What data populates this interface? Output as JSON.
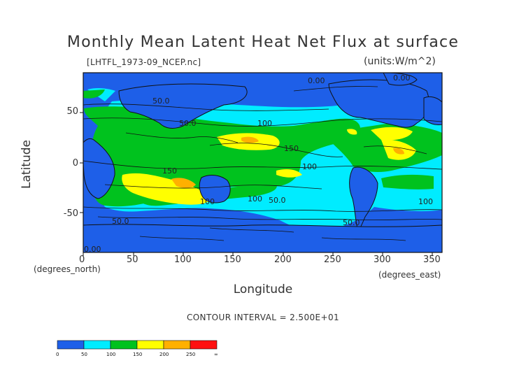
{
  "title": "Monthly Mean Latent Heat Net Flux at surface",
  "file": "[LHTFL_1973-09_NCEP.nc]",
  "units": "(units:W/m^2)",
  "axes": {
    "xlabel": "Longitude",
    "ylabel": "Latitude",
    "x_corner": "(degrees_east)",
    "y_corner": "(degrees_north)",
    "xticks": [
      "0",
      "50",
      "100",
      "150",
      "200",
      "250",
      "300",
      "350"
    ],
    "yticks": [
      "50",
      "0",
      "-50"
    ]
  },
  "contour_interval": "CONTOUR INTERVAL = 2.500E+01",
  "contour_labels": [
    "0.00",
    "0.00",
    "50.0",
    "50.0",
    "100",
    "150",
    "150",
    "100",
    "100",
    "100",
    "50.0",
    "50.0",
    "100",
    "50.0",
    "0.00"
  ],
  "colorbar": {
    "labels": [
      "0",
      "50",
      "100",
      "150",
      "200",
      "250",
      "∞"
    ],
    "colors": [
      "#1e5fe8",
      "#00ecff",
      "#00c21e",
      "#ffff00",
      "#ffb000",
      "#ff7000",
      "#ff1010"
    ]
  },
  "chart_data": {
    "type": "heatmap",
    "title": "Monthly Mean Latent Heat Net Flux at surface",
    "xlabel": "Longitude",
    "ylabel": "Latitude",
    "xlim": [
      0,
      360
    ],
    "ylim": [
      -90,
      90
    ],
    "levels": [
      0,
      25,
      50,
      75,
      100,
      125,
      150,
      175,
      200,
      225,
      250,
      275
    ]
  }
}
